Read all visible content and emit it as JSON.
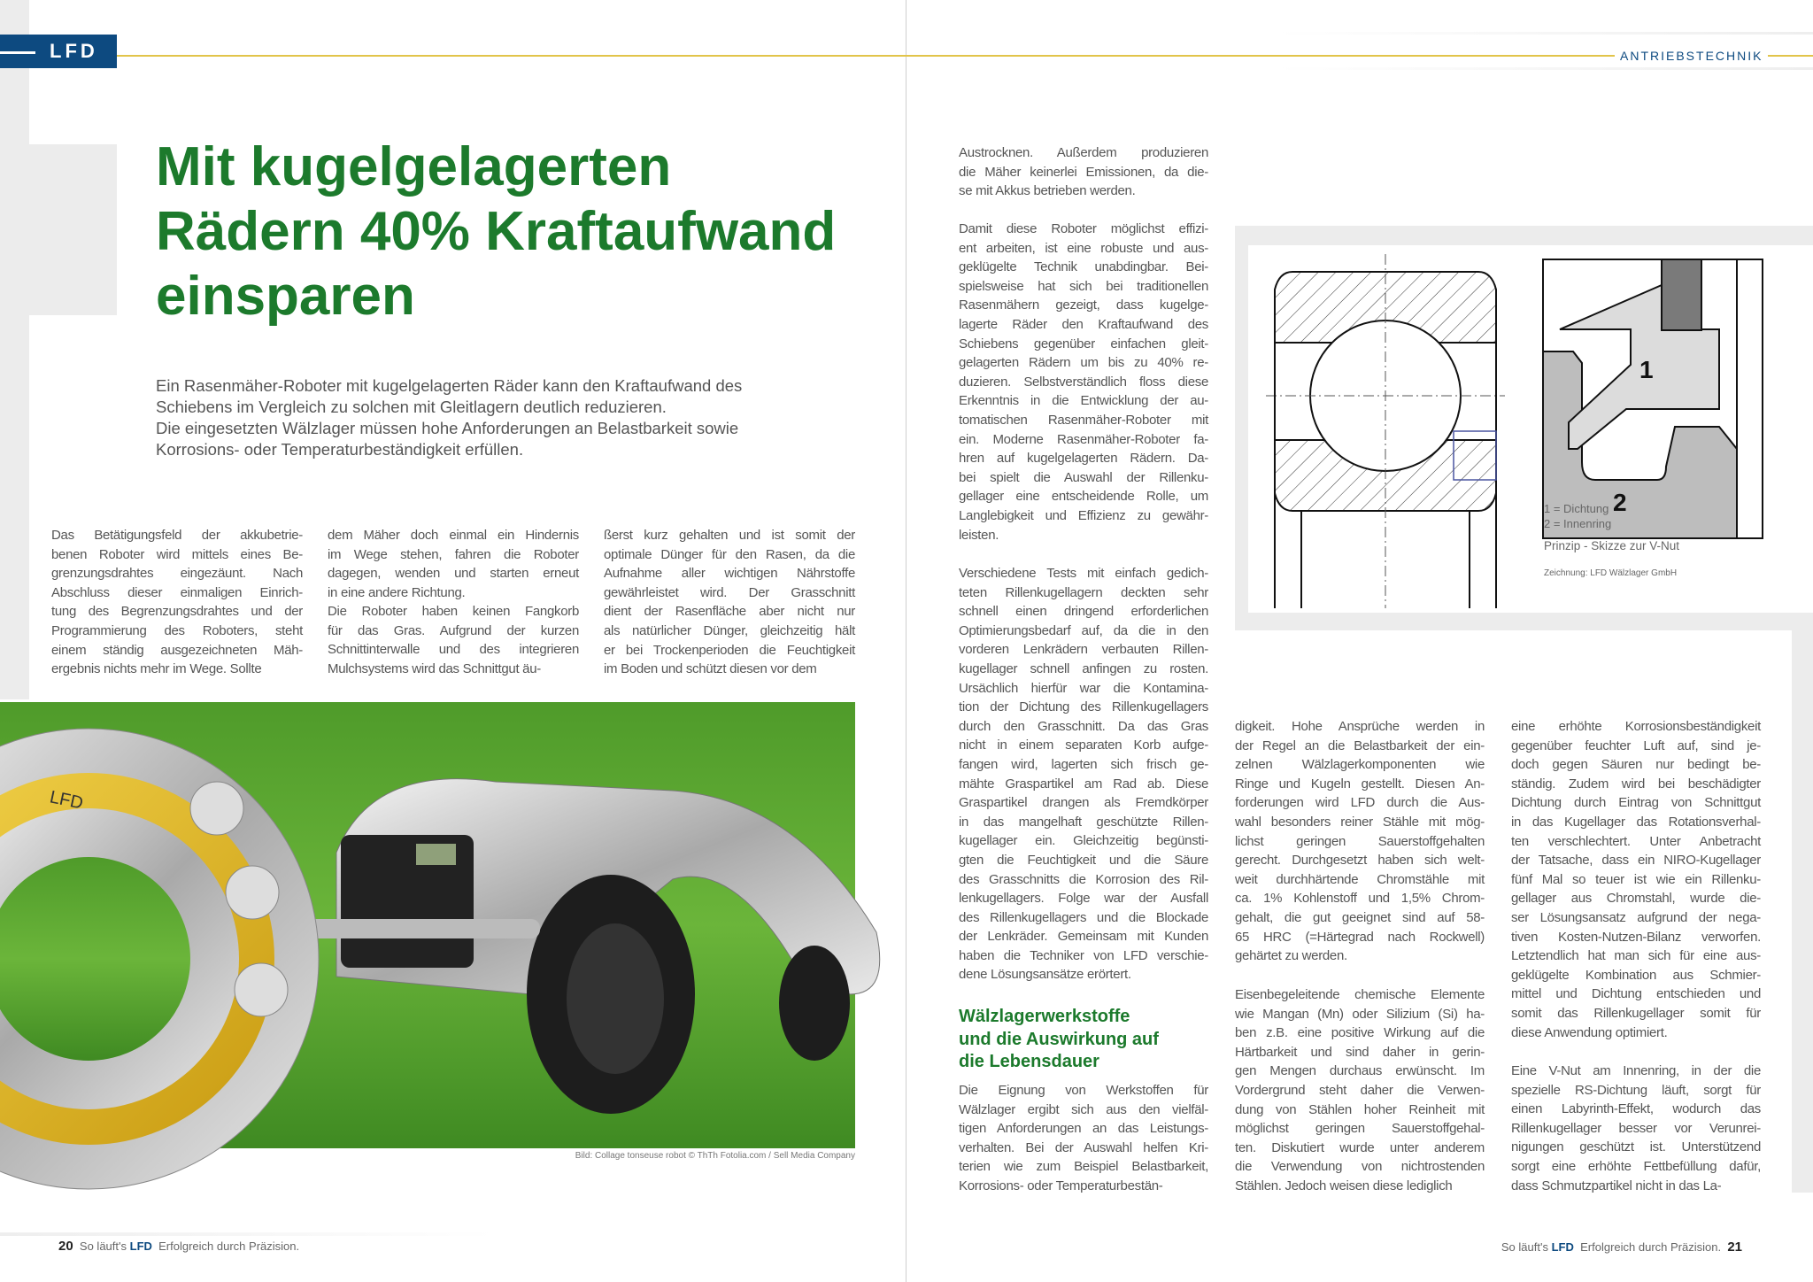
{
  "header": {
    "badge": "LFD",
    "section": "ANTRIEBSTECHNIK"
  },
  "article": {
    "title_lines": [
      "Mit kugelgelagerten",
      "Rädern 40% Kraftaufwand",
      "einsparen"
    ],
    "lead": "Ein Rasenmäher-Roboter mit kugelgelagerten Räder kann den Kraftaufwand des Schiebens im Vergleich zu solchen mit Gleitlagern deutlich reduzieren. Die eingesetzten Wälzlager müssen hohe Anforderungen an Belastbarkeit sowie Korrosions- oder Temperaturbeständigkeit erfüllen.",
    "lead_lines": [
      "Ein Rasenmäher-Roboter mit kugelgelagerten Räder kann den Kraftaufwand des",
      "Schiebens im Vergleich zu solchen mit Gleitlagern deutlich reduzieren.",
      "Die eingesetzten Wälzlager müssen hohe Anforderungen an Belastbarkeit sowie",
      "Korrosions- oder Temperaturbeständigkeit erfüllen."
    ],
    "left_col1": [
      "Das Betätigungsfeld der akkubetrie-",
      "benen Roboter wird mittels eines Be-",
      "grenzungsdrahtes eingezäunt. Nach",
      "Abschluss dieser einmaligen Einrich-",
      "tung des Begrenzungsdrahtes und der",
      "Programmierung des Roboters, steht",
      "einem ständig ausgezeichneten Mäh-",
      "ergebnis nichts mehr im Wege. Sollte"
    ],
    "left_col2a": [
      "dem Mäher doch einmal ein Hindernis",
      "im Wege stehen, fahren die Roboter",
      "dagegen, wenden und starten erneut",
      "in eine andere Richtung."
    ],
    "left_col2b": [
      "Die Roboter haben keinen Fangkorb",
      "für das Gras. Aufgrund der kurzen",
      "Schnittinterwalle und des integrieren",
      "Mulchsystems wird das Schnittgut äu-"
    ],
    "left_col3": [
      "ßerst kurz gehalten und ist somit der",
      "optimale Dünger für den Rasen, da die",
      "Aufnahme aller wichtigen Nährstoffe",
      "gewährleistet wird. Der Grasschnitt",
      "dient der Rasenfläche aber nicht nur",
      "als natürlicher Dünger, gleichzeitig hält",
      "er bei Trockenperioden die Feuchtigkeit",
      "im Boden und schützt diesen vor dem"
    ],
    "photo_caption": "Bild: Collage tonseuse robot © ThTh Fotolia.com / Sell Media Company",
    "bearing_label": "LFD",
    "right_col1a": [
      "Austrocknen. Außerdem produzieren",
      "die Mäher keinerlei Emissionen, da die-",
      "se mit Akkus betrieben werden."
    ],
    "right_col1b": [
      "Damit diese Roboter möglichst effizi-",
      "ent arbeiten, ist eine robuste und aus-",
      "geklügelte Technik unabdingbar. Bei-",
      "spielsweise hat sich bei traditionellen",
      "Rasenmähern gezeigt, dass kugelge-",
      "lagerte Räder den Kraftaufwand des",
      "Schiebens gegenüber einfachen gleit-",
      "gelagerten Rädern um bis zu 40% re-",
      "duzieren. Selbstverständlich floss diese",
      "Erkenntnis in die Entwicklung der au-",
      "tomatischen Rasenmäher-Roboter mit",
      "ein. Moderne Rasenmäher-Roboter fa-",
      "hren auf kugelgelagerten Rädern. Da-",
      "bei spielt die Auswahl der Rillenku-",
      "gellager eine entscheidende Rolle, um",
      "Langlebigkeit und Effizienz zu gewähr-",
      "leisten."
    ],
    "right_col1c": [
      "Verschiedene Tests mit einfach gedich-",
      "teten Rillenkugellagern deckten sehr",
      "schnell einen dringend erforderlichen",
      "Optimierungsbedarf auf, da die in den",
      "vorderen Lenkrädern verbauten Rillen-",
      "kugellager schnell anfingen zu rosten.",
      "Ursächlich hierfür war die Kontamina-",
      "tion der Dichtung des Rillenkugellagers",
      "durch den Grasschnitt. Da das Gras",
      "nicht in einem separaten Korb aufge-",
      "fangen wird, lagerten sich frisch ge-",
      "mähte Graspartikel am Rad ab. Diese",
      "Graspartikel drangen als Fremdkörper",
      "in das mangelhaft geschützte Rillen-",
      "kugellager ein. Gleichzeitig begünsti-",
      "gten die Feuchtigkeit und die Säure",
      "des Grasschnitts die Korrosion des Ril-",
      "lenkugellagers. Folge war der Ausfall",
      "des Rillenkugellagers und die Blockade",
      "der Lenkräder. Gemeinsam mit Kunden",
      "haben die Techniker von LFD verschie-",
      "dene Lösungsansätze erörtert."
    ],
    "subheading": [
      "Wälzlagerwerkstoffe",
      "und die Auswirkung auf",
      "die Lebensdauer"
    ],
    "right_col1d": [
      "Die Eignung von Werkstoffen für",
      "Wälzlager ergibt sich aus den vielfäl-",
      "tigen Anforderungen an das Leistungs-",
      "verhalten. Bei der Auswahl helfen Kri-",
      "terien wie zum Beispiel Belastbarkeit,",
      "Korrosions- oder Temperaturbestän-"
    ],
    "right_col2a": [
      "digkeit. Hohe Ansprüche werden in",
      "der Regel an die Belastbarkeit der ein-",
      "zelnen Wälzlagerkomponenten wie",
      "Ringe und Kugeln gestellt. Diesen An-",
      "forderungen wird LFD durch die Aus-",
      "wahl besonders reiner Stähle mit mög-",
      "lichst geringen Sauerstoffgehalten",
      "gerecht. Durchgesetzt haben sich welt-",
      "weit durchhärtende Chromstähle mit",
      "ca. 1% Kohlenstoff und 1,5% Chrom-",
      "gehalt, die gut geeignet sind auf 58-",
      "65 HRC (=Härtegrad nach Rockwell)",
      "gehärtet zu werden."
    ],
    "right_col2b": [
      "Eisenbegeleitende chemische Elemente",
      "wie Mangan (Mn) oder Silizium (Si) ha-",
      "ben z.B. eine positive Wirkung auf die",
      "Härtbarkeit und sind daher in gerin-",
      "gen Mengen durchaus erwünscht. Im",
      "Vordergrund steht daher die Verwen-",
      "dung von Stählen hoher Reinheit mit",
      "möglichst geringen Sauerstoffgehal-",
      "ten. Diskutiert wurde unter anderem",
      "die Verwendung von nichtrostenden",
      "Stählen. Jedoch weisen diese lediglich"
    ],
    "right_col3a": [
      "eine erhöhte Korrosionsbeständigkeit",
      "gegenüber feuchter Luft auf, sind je-",
      "doch gegen Säuren nur bedingt be-",
      "ständig. Zudem wird bei beschädigter",
      "Dichtung durch Eintrag von Schnittgut",
      "in das Kugellager das Rotationsverhal-",
      "ten verschlechtert. Unter Anbetracht",
      "der Tatsache, dass ein NIRO-Kugellager",
      "fünf Mal so teuer ist wie ein Rillenku-",
      "gellager aus Chromstahl, wurde die-",
      "ser Lösungsansatz aufgrund der nega-",
      "tiven Kosten-Nutzen-Bilanz verworfen.",
      "Letztendlich hat man sich für eine aus-",
      "geklügelte Kombination aus Schmier-",
      "mittel und Dichtung entschieden und",
      "somit das Rillenkugellager somit für",
      "diese Anwendung optimiert."
    ],
    "right_col3b": [
      "Eine V-Nut am Innenring, in der die",
      "spezielle RS-Dichtung läuft, sorgt für",
      "einen Labyrinth-Effekt, wodurch das",
      "Rillenkugellager besser vor Verunrei-",
      "nigungen geschützt ist. Unterstützend",
      "sorgt eine erhöhte Fettbefüllung dafür,",
      "dass Schmutzpartikel nicht in das La-"
    ]
  },
  "figure": {
    "label_1": "1",
    "label_2": "2",
    "legend_1": "1 = Dichtung",
    "legend_2": "2 = Innenring",
    "caption": "Prinzip - Skizze zur V-Nut",
    "credit": "Zeichnung: LFD Wälzlager GmbH"
  },
  "footer": {
    "left_page": "20",
    "right_page": "21",
    "brand_prefix": "So läuft's",
    "brand": "LFD",
    "slogan": "Erfolgreich durch Präzision."
  },
  "colors": {
    "brand_blue": "#0d4a80",
    "title_green": "#1c7a2c",
    "gold_rule": "#e2c44a"
  }
}
